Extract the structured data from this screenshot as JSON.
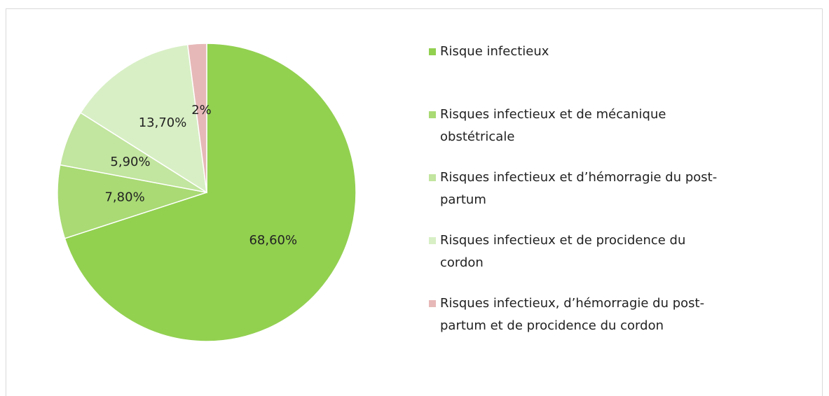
{
  "chart_data": {
    "type": "pie",
    "categories": [
      "Risque infectieux",
      "Risques infectieux et de mécanique obstétricale",
      "Risques infectieux et d’hémorragie du post-partum",
      "Risques infectieux et de procidence du cordon",
      "Risques infectieux, d’hémorragie du post-partum et de procidence du cordon"
    ],
    "values": [
      68.6,
      7.8,
      5.9,
      13.7,
      2
    ],
    "value_labels": [
      "68,60%",
      "7,80%",
      "5,90%",
      "13,70%",
      "2%"
    ],
    "colors": [
      "#92d050",
      "#a9da74",
      "#c2e59f",
      "#d8efc5",
      "#e6b8b7"
    ],
    "legend": "right"
  }
}
